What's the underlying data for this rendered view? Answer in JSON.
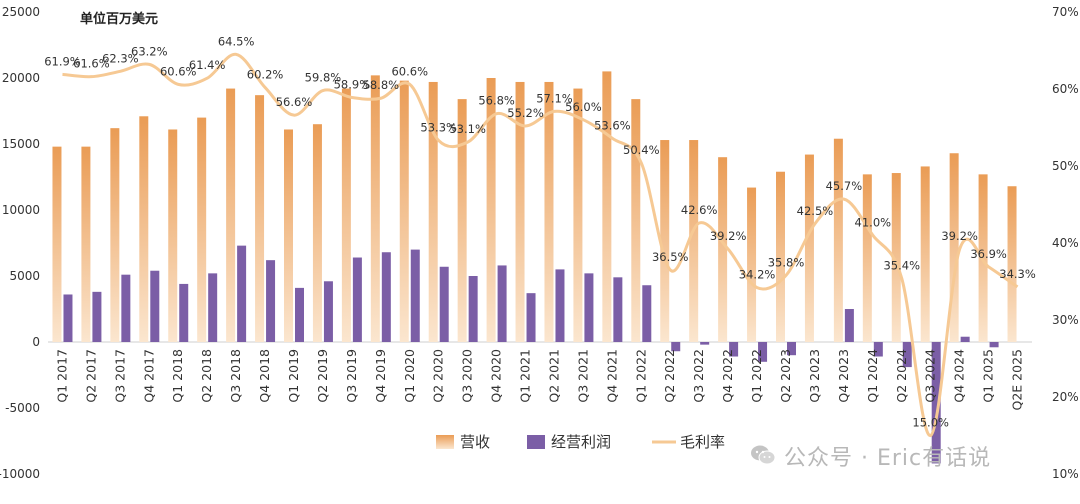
{
  "unit_label": "单位百万美元",
  "watermark": "公众号 · Eric有话说",
  "colors": {
    "revenue_top": "#ea9c55",
    "revenue_bottom": "#fbe6cf",
    "op_profit": "#7b5ea6",
    "gross_margin": "#f6c994",
    "tick_text": "#333333",
    "gridline": "#e6e6e6"
  },
  "chart_data": {
    "type": "bar",
    "title": "",
    "xlabel": "",
    "ylabel": "",
    "ylim": [
      -10000,
      25000
    ],
    "y_ticks": [
      "-10000",
      "-5000",
      "0",
      "5000",
      "10000",
      "15000",
      "20000",
      "25000"
    ],
    "y2lim": [
      10,
      70
    ],
    "y2_ticks": [
      "10%",
      "20%",
      "30%",
      "40%",
      "50%",
      "60%",
      "70%"
    ],
    "categories": [
      "Q1 2017",
      "Q2 2017",
      "Q3 2017",
      "Q4 2017",
      "Q1 2018",
      "Q2 2018",
      "Q3 2018",
      "Q4 2018",
      "Q1 2019",
      "Q2 2019",
      "Q3 2019",
      "Q4 2019",
      "Q1 2020",
      "Q2 2020",
      "Q3 2020",
      "Q4 2020",
      "Q1 2021",
      "Q2 2021",
      "Q3 2021",
      "Q4 2021",
      "Q1 2022",
      "Q2 2022",
      "Q3 2022",
      "Q4 2022",
      "Q1 2022",
      "Q2 2023",
      "Q3 2023",
      "Q4 2023",
      "Q1 2024",
      "Q2 2024",
      "Q3 2024",
      "Q4 2024",
      "Q1 2025",
      "Q2E 2025"
    ],
    "series": [
      {
        "name": "营收",
        "kind": "bar",
        "values": [
          14800,
          14800,
          16200,
          17100,
          16100,
          17000,
          19200,
          18700,
          16100,
          16500,
          19200,
          20200,
          19800,
          19700,
          18400,
          20000,
          19700,
          19700,
          19200,
          20500,
          18400,
          15300,
          15300,
          14000,
          11700,
          12900,
          14200,
          15400,
          12700,
          12800,
          13300,
          14300,
          12700,
          11800
        ]
      },
      {
        "name": "经营利润",
        "kind": "bar",
        "values": [
          3600,
          3800,
          5100,
          5400,
          4400,
          5200,
          7300,
          6200,
          4100,
          4600,
          6400,
          6800,
          7000,
          5700,
          5000,
          5800,
          3700,
          5500,
          5200,
          4900,
          4300,
          -700,
          -200,
          -1100,
          -1500,
          -1000,
          0,
          2500,
          -1100,
          -1900,
          -9200,
          400,
          -400,
          0
        ]
      },
      {
        "name": "毛利率",
        "kind": "line",
        "axis": "right",
        "values": [
          61.9,
          61.6,
          62.3,
          63.2,
          60.6,
          61.4,
          64.5,
          60.2,
          56.6,
          59.8,
          58.9,
          58.8,
          60.6,
          53.3,
          53.1,
          56.8,
          55.2,
          57.1,
          56.0,
          53.6,
          50.4,
          36.5,
          42.6,
          39.2,
          34.2,
          35.8,
          42.5,
          45.7,
          41.0,
          35.4,
          15.0,
          39.2,
          36.9,
          34.3
        ],
        "labels": [
          "61.9%",
          "61.6%",
          "62.3%",
          "63.2%",
          "60.6%",
          "61.4%",
          "64.5%",
          "60.2%",
          "56.6%",
          "59.8%",
          "58.9%",
          "58.8%",
          "60.6%",
          "53.3%",
          "53.1%",
          "56.8%",
          "55.2%",
          "57.1%",
          "56.0%",
          "53.6%",
          "50.4%",
          "36.5%",
          "42.6%",
          "39.2%",
          "34.2%",
          "35.8%",
          "42.5%",
          "45.7%",
          "41.0%",
          "35.4%",
          "15.0%",
          "39.2%",
          "36.9%",
          "34.3%"
        ]
      }
    ],
    "legend_position": "bottom-center",
    "grid": false
  }
}
